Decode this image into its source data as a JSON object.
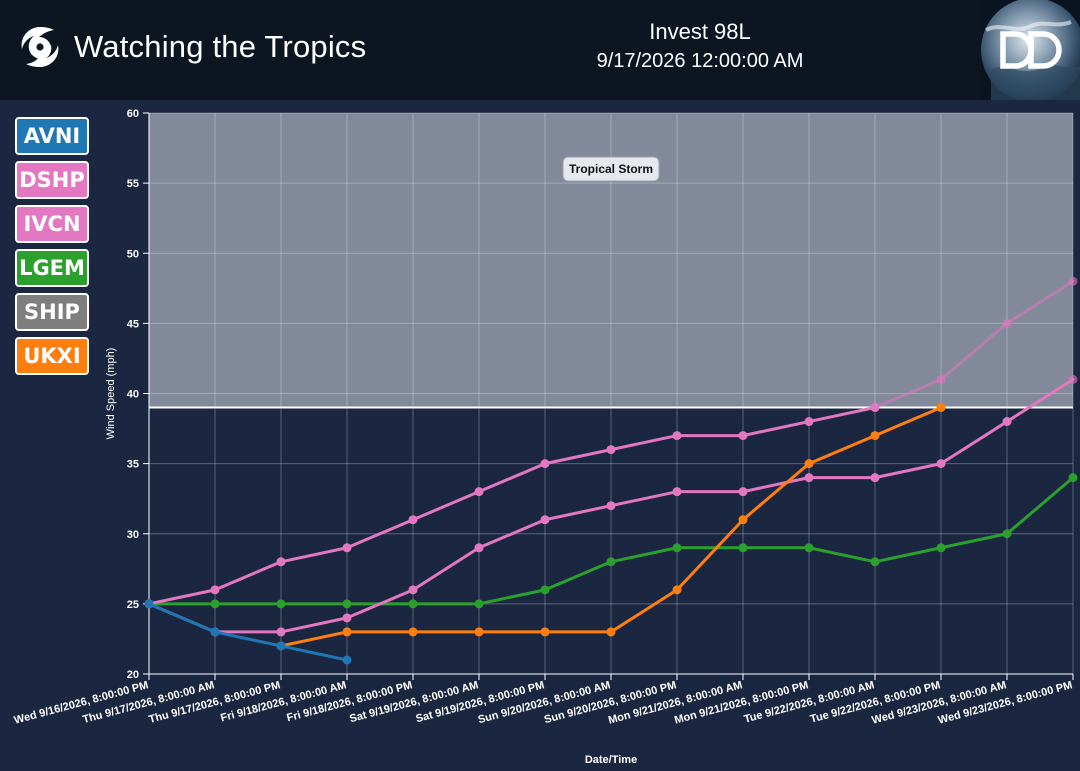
{
  "header": {
    "app_title": "Watching the Tropics",
    "storm_name": "Invest 98L",
    "storm_time": "9/17/2026 12:00:00 AM",
    "brand_icon": "hurricane-icon",
    "logo_icon": "dd-logo-icon"
  },
  "legend": [
    {
      "label": "AVNI",
      "color": "#1f77b4"
    },
    {
      "label": "DSHP",
      "color": "#e377c2"
    },
    {
      "label": "IVCN",
      "color": "#e377c2"
    },
    {
      "label": "LGEM",
      "color": "#2ca02c"
    },
    {
      "label": "SHIP",
      "color": "#7f7f7f"
    },
    {
      "label": "UKXI",
      "color": "#ff7f0e"
    }
  ],
  "chart_data": {
    "type": "line",
    "xlabel": "Date/Time",
    "ylabel": "Wind Speed (mph)",
    "ylim": [
      20,
      60
    ],
    "yticks": [
      20,
      25,
      30,
      35,
      40,
      45,
      50,
      55,
      60
    ],
    "grid": true,
    "categories": [
      "Wed 9/16/2026, 8:00:00 PM",
      "Thu 9/17/2026, 8:00:00 AM",
      "Thu 9/17/2026, 8:00:00 PM",
      "Fri 9/18/2026, 8:00:00 AM",
      "Fri 9/18/2026, 8:00:00 PM",
      "Sat 9/19/2026, 8:00:00 AM",
      "Sat 9/19/2026, 8:00:00 PM",
      "Sun 9/20/2026, 8:00:00 AM",
      "Sun 9/20/2026, 8:00:00 PM",
      "Mon 9/21/2026, 8:00:00 AM",
      "Mon 9/21/2026, 8:00:00 PM",
      "Tue 9/22/2026, 8:00:00 AM",
      "Tue 9/22/2026, 8:00:00 PM",
      "Wed 9/23/2026, 8:00:00 AM",
      "Wed 9/23/2026, 8:00:00 PM"
    ],
    "threshold": {
      "label": "Tropical Storm",
      "value": 39
    },
    "series": [
      {
        "name": "LGEM",
        "color": "#2ca02c",
        "values": [
          25,
          25,
          25,
          25,
          25,
          25,
          26,
          28,
          29,
          29,
          29,
          28,
          29,
          30,
          34
        ]
      },
      {
        "name": "DSHP",
        "color": "#e377c2",
        "values": [
          25,
          26,
          28,
          29,
          31,
          33,
          35,
          36,
          37,
          37,
          38,
          39,
          41,
          45,
          48
        ]
      },
      {
        "name": "IVCN",
        "color": "#e377c2",
        "values": [
          25,
          23,
          23,
          24,
          26,
          29,
          31,
          32,
          33,
          33,
          34,
          34,
          35,
          38,
          41
        ]
      },
      {
        "name": "UKXI",
        "color": "#ff7f0e",
        "values": [
          null,
          null,
          22,
          23,
          23,
          23,
          23,
          23,
          26,
          31,
          35,
          37,
          39,
          null,
          null
        ]
      },
      {
        "name": "AVNI",
        "color": "#1f77b4",
        "values": [
          25,
          23,
          22,
          21,
          null,
          null,
          null,
          null,
          null,
          null,
          null,
          null,
          null,
          null,
          null
        ]
      }
    ]
  }
}
